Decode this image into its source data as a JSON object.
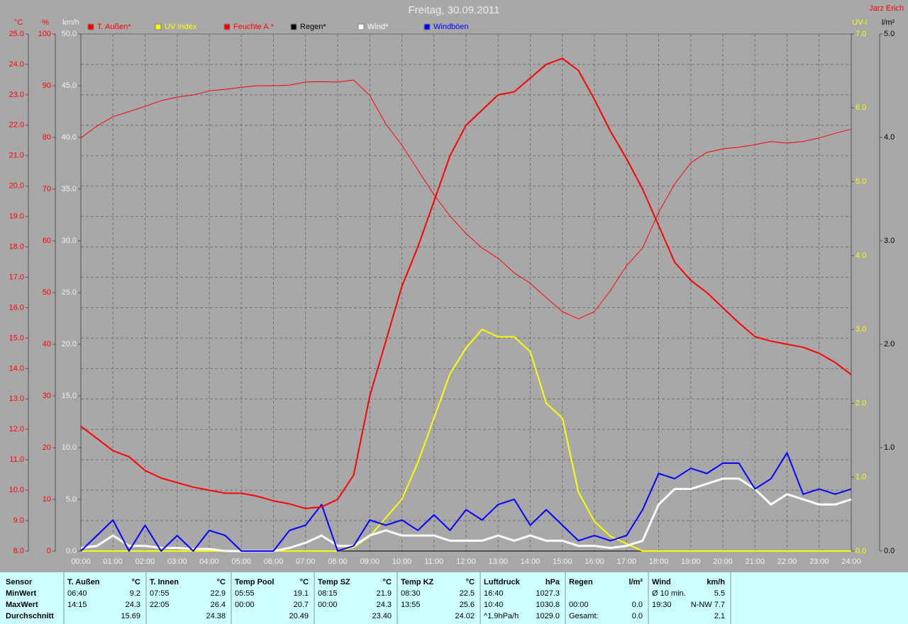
{
  "chart_data": {
    "type": "line",
    "title": "Freitag, 30.09.2011",
    "author": "Jarz Erich",
    "grid": true,
    "x": [
      0,
      0.5,
      1,
      1.5,
      2,
      2.5,
      3,
      3.5,
      4,
      4.5,
      5,
      5.5,
      6,
      6.5,
      7,
      7.5,
      8,
      8.5,
      9,
      9.5,
      10,
      10.5,
      11,
      11.5,
      12,
      12.5,
      13,
      13.5,
      14,
      14.5,
      15,
      15.5,
      16,
      16.5,
      17,
      17.5,
      18,
      18.5,
      19,
      19.5,
      20,
      20.5,
      21,
      21.5,
      22,
      22.5,
      23,
      23.5,
      24
    ],
    "xlim": [
      0,
      24
    ],
    "xticks": [
      {
        "value": 0,
        "label": "00:00"
      },
      {
        "value": 1,
        "label": "01:00"
      },
      {
        "value": 2,
        "label": "02:00"
      },
      {
        "value": 3,
        "label": "03:00"
      },
      {
        "value": 4,
        "label": "04:00"
      },
      {
        "value": 5,
        "label": "05:00"
      },
      {
        "value": 6,
        "label": "06:00"
      },
      {
        "value": 7,
        "label": "07:00"
      },
      {
        "value": 8,
        "label": "08:00"
      },
      {
        "value": 9,
        "label": "09:00"
      },
      {
        "value": 10,
        "label": "10:00"
      },
      {
        "value": 11,
        "label": "11:00"
      },
      {
        "value": 12,
        "label": "12:00"
      },
      {
        "value": 13,
        "label": "13:00"
      },
      {
        "value": 14,
        "label": "14:00"
      },
      {
        "value": 15,
        "label": "15:00"
      },
      {
        "value": 16,
        "label": "16:00"
      },
      {
        "value": 17,
        "label": "17:00"
      },
      {
        "value": 18,
        "label": "18:00"
      },
      {
        "value": 19,
        "label": "19:00"
      },
      {
        "value": 20,
        "label": "20:00"
      },
      {
        "value": 21,
        "label": "21:00"
      },
      {
        "value": 22,
        "label": "22:00"
      },
      {
        "value": 23,
        "label": "23:00"
      },
      {
        "value": 24,
        "label": "24:00"
      }
    ],
    "axes": [
      {
        "unit": "°C",
        "color": "#ff0000",
        "lim": [
          8,
          25
        ],
        "ticks": [
          {
            "value": 8,
            "label": "8.0"
          },
          {
            "value": 9,
            "label": "9.0"
          },
          {
            "value": 10,
            "label": "10.0"
          },
          {
            "value": 11,
            "label": "11.0"
          },
          {
            "value": 12,
            "label": "12.0"
          },
          {
            "value": 13,
            "label": "13.0"
          },
          {
            "value": 14,
            "label": "14.0"
          },
          {
            "value": 15,
            "label": "15.0"
          },
          {
            "value": 16,
            "label": "16.0"
          },
          {
            "value": 17,
            "label": "17.0"
          },
          {
            "value": 18,
            "label": "18.0"
          },
          {
            "value": 19,
            "label": "19.0"
          },
          {
            "value": 20,
            "label": "20.0"
          },
          {
            "value": 21,
            "label": "21.0"
          },
          {
            "value": 22,
            "label": "22.0"
          },
          {
            "value": 23,
            "label": "23.0"
          },
          {
            "value": 24,
            "label": "24.0"
          },
          {
            "value": 25,
            "label": "25.0"
          }
        ]
      },
      {
        "unit": "%",
        "color": "#ff0000",
        "lim": [
          0,
          100
        ],
        "ticks": [
          0,
          10,
          20,
          30,
          40,
          50,
          60,
          70,
          80,
          90,
          100
        ]
      },
      {
        "unit": "km/h",
        "color": "#f0f0f0",
        "lim": [
          0,
          50
        ],
        "ticks": [
          {
            "value": 0,
            "label": "0.0"
          },
          {
            "value": 5,
            "label": "5.0"
          },
          {
            "value": 10,
            "label": "10.0"
          },
          {
            "value": 15,
            "label": "15.0"
          },
          {
            "value": 20,
            "label": "20.0"
          },
          {
            "value": 25,
            "label": "25.0"
          },
          {
            "value": 30,
            "label": "30.0"
          },
          {
            "value": 35,
            "label": "35.0"
          },
          {
            "value": 40,
            "label": "40.0"
          },
          {
            "value": 45,
            "label": "45.0"
          },
          {
            "value": 50,
            "label": "50.0"
          }
        ]
      },
      {
        "unit": "UV-I",
        "color": "#ffff00",
        "lim": [
          0,
          7
        ],
        "ticks": [
          {
            "value": 0,
            "label": "0.0"
          },
          {
            "value": 1,
            "label": "1.0"
          },
          {
            "value": 2,
            "label": "2.0"
          },
          {
            "value": 3,
            "label": "3.0"
          },
          {
            "value": 4,
            "label": "4.0"
          },
          {
            "value": 5,
            "label": "5.0"
          },
          {
            "value": 6,
            "label": "6.0"
          },
          {
            "value": 7,
            "label": "7.0"
          }
        ]
      },
      {
        "unit": "l/m²",
        "color": "#000000",
        "lim": [
          0,
          5
        ],
        "ticks": [
          {
            "value": 0,
            "label": "0.0"
          },
          {
            "value": 1,
            "label": "1.0"
          },
          {
            "value": 2,
            "label": "2.0"
          },
          {
            "value": 3,
            "label": "3.0"
          },
          {
            "value": 4,
            "label": "4.0"
          },
          {
            "value": 5,
            "label": "5.0"
          }
        ]
      }
    ],
    "series": [
      {
        "name": "T. Außen*",
        "color": "#ff0000",
        "axis": 0,
        "width": 2,
        "values": [
          12.1,
          11.7,
          11.3,
          11.1,
          10.65,
          10.4,
          10.25,
          10.1,
          10.0,
          9.9,
          9.9,
          9.8,
          9.65,
          9.55,
          9.4,
          9.45,
          9.7,
          10.5,
          13.1,
          14.9,
          16.7,
          18.0,
          19.5,
          21.0,
          22.0,
          22.5,
          23.0,
          23.1,
          23.55,
          24.0,
          24.2,
          23.8,
          22.85,
          21.8,
          20.9,
          19.9,
          18.7,
          17.5,
          16.9,
          16.5,
          16.0,
          15.5,
          15.05,
          14.9,
          14.8,
          14.7,
          14.5,
          14.2,
          13.8
        ]
      },
      {
        "name": "UV Index",
        "color": "#ffff00",
        "axis": 3,
        "width": 2,
        "values": [
          0,
          0,
          0,
          0,
          0,
          0,
          0,
          0,
          0,
          0,
          0,
          0,
          0,
          0,
          0,
          0,
          0,
          0.05,
          0.2,
          0.45,
          0.7,
          1.2,
          1.8,
          2.4,
          2.75,
          3.0,
          2.9,
          2.9,
          2.7,
          2.0,
          1.8,
          0.8,
          0.4,
          0.2,
          0.1,
          0,
          0,
          0,
          0,
          0,
          0,
          0,
          0,
          0,
          0,
          0,
          0,
          0,
          0
        ]
      },
      {
        "name": "Feuchte A.*",
        "color": "#ff0000",
        "axis": 1,
        "width": 1,
        "values": [
          79.9,
          82.2,
          84,
          85,
          86,
          87.1,
          87.8,
          88.2,
          89,
          89.3,
          89.7,
          90,
          90,
          90.1,
          90.7,
          90.8,
          90.7,
          91.1,
          88.1,
          82.6,
          78.5,
          73.7,
          68.9,
          64.8,
          61.4,
          58.6,
          56.6,
          53.8,
          51.8,
          49,
          46.3,
          44.9,
          46.3,
          50.4,
          55.2,
          58.6,
          65.5,
          71,
          75.1,
          77.1,
          77.8,
          78.1,
          78.6,
          79.2,
          78.9,
          79.2,
          79.9,
          80.8,
          81.6
        ]
      },
      {
        "name": "Regen*",
        "color": "#000000",
        "axis": 4,
        "width": 1,
        "values": [
          0,
          0,
          0,
          0,
          0,
          0,
          0,
          0,
          0,
          0,
          0,
          0,
          0,
          0,
          0,
          0,
          0,
          0,
          0,
          0,
          0,
          0,
          0,
          0,
          0,
          0,
          0,
          0,
          0,
          0,
          0,
          0,
          0,
          0,
          0,
          0,
          0,
          0,
          0,
          0,
          0,
          0,
          0,
          0,
          0,
          0,
          0,
          0,
          0
        ]
      },
      {
        "name": "Wind*",
        "color": "#ffffff",
        "axis": 2,
        "width": 3,
        "values": [
          0.3,
          0.5,
          1.5,
          0.5,
          0.5,
          0.3,
          0.3,
          0.2,
          0.2,
          0,
          0,
          0,
          0,
          0.3,
          0.8,
          1.5,
          0.5,
          0.5,
          1.5,
          2.0,
          1.5,
          1.5,
          1.5,
          1.0,
          1.0,
          1.0,
          1.5,
          1.0,
          1.5,
          1.0,
          1.0,
          0.5,
          0.5,
          0.3,
          0.5,
          1.0,
          4.5,
          6.0,
          6.0,
          6.5,
          7.0,
          7.0,
          6.0,
          4.5,
          5.5,
          5.0,
          4.5,
          4.5,
          5.0
        ]
      },
      {
        "name": "Windböen",
        "color": "#0000ff",
        "axis": 2,
        "width": 2,
        "values": [
          0,
          1.5,
          3.0,
          0,
          2.5,
          0,
          1.5,
          0,
          2.0,
          1.5,
          0,
          0,
          0,
          2.0,
          2.5,
          4.5,
          0,
          0.5,
          3.0,
          2.5,
          3.0,
          2.0,
          3.5,
          2.0,
          4.0,
          3.0,
          4.5,
          5.0,
          2.5,
          4.0,
          2.5,
          1.0,
          1.5,
          1.0,
          1.5,
          4.0,
          7.5,
          7.0,
          8.0,
          7.5,
          8.5,
          8.5,
          6.0,
          7.0,
          9.5,
          5.5,
          6.0,
          5.5,
          6.0
        ]
      }
    ]
  },
  "table": {
    "sensor": [
      "Sensor",
      "MinWert",
      "MaxWert",
      "Durchschnitt"
    ],
    "groups": [
      {
        "name": "T. Außen",
        "unit": "°C",
        "rows": [
          [
            "06:40",
            "9.2"
          ],
          [
            "14:15",
            "24.3"
          ],
          [
            "15.69"
          ]
        ]
      },
      {
        "name": "T. Innen",
        "unit": "°C",
        "rows": [
          [
            "07:55",
            "22.9"
          ],
          [
            "22:05",
            "26.4"
          ],
          [
            "24.38"
          ]
        ]
      },
      {
        "name": "Temp Pool",
        "unit": "°C",
        "rows": [
          [
            "05:55",
            "19.1"
          ],
          [
            "00:00",
            "20.7"
          ],
          [
            "20.49"
          ]
        ]
      },
      {
        "name": "Temp SZ",
        "unit": "°C",
        "rows": [
          [
            "08:15",
            "21.9"
          ],
          [
            "00:00",
            "24.3"
          ],
          [
            "23.40"
          ]
        ]
      },
      {
        "name": "Temp KZ",
        "unit": "°C",
        "rows": [
          [
            "08:30",
            "22.5"
          ],
          [
            "13:55",
            "25.6"
          ],
          [
            "24.02"
          ]
        ]
      },
      {
        "name": "Luftdruck",
        "unit": "hPa",
        "rows": [
          [
            "16:40",
            "1027.3"
          ],
          [
            "10:40",
            "1030.8"
          ],
          [
            "^1.9hPa/h",
            "1029.0"
          ]
        ]
      },
      {
        "name": "Regen",
        "unit": "l/m²",
        "rows": [
          [],
          [
            "00:00",
            "0.0"
          ],
          [
            "Gesamt:",
            "0.0"
          ]
        ]
      },
      {
        "name": "Wind",
        "unit": "km/h",
        "rows": [
          [
            "Ø 10 min.",
            "5.5"
          ],
          [
            "19:30",
            "N-NW 7.7"
          ],
          [
            "2.1"
          ]
        ]
      }
    ]
  }
}
